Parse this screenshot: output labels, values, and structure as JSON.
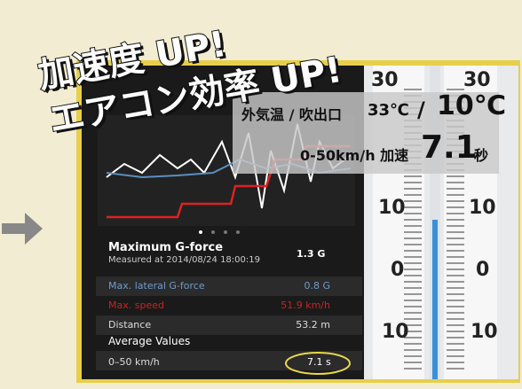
{
  "headline": {
    "line1": "加速度 UP!",
    "line2": "エアコン効率 UP!"
  },
  "overlay": {
    "temp_label": "外気温 / 吹出口",
    "outside": "33℃",
    "separator": "/",
    "outlet": "10℃",
    "accel_label": "0-50km/h 加速",
    "accel_value": "7.1",
    "accel_unit": "秒"
  },
  "app": {
    "title": "Maximum G-force",
    "measured": "Measured at 2014/08/24 18:00:19",
    "max_g": "1.3 G",
    "rows": [
      [
        "Max. lateral G-force",
        "0.8 G"
      ],
      [
        "Max. speed",
        "51.9 km/h"
      ],
      [
        "Distance",
        "53.2 m"
      ]
    ],
    "section": "Average Values",
    "avg_rows": [
      [
        "0–50 km/h",
        "7.1 s"
      ]
    ]
  },
  "thermometers": {
    "left": [
      "30",
      "10",
      "0",
      "10"
    ],
    "right": [
      "30",
      "10",
      "0",
      "10"
    ]
  }
}
